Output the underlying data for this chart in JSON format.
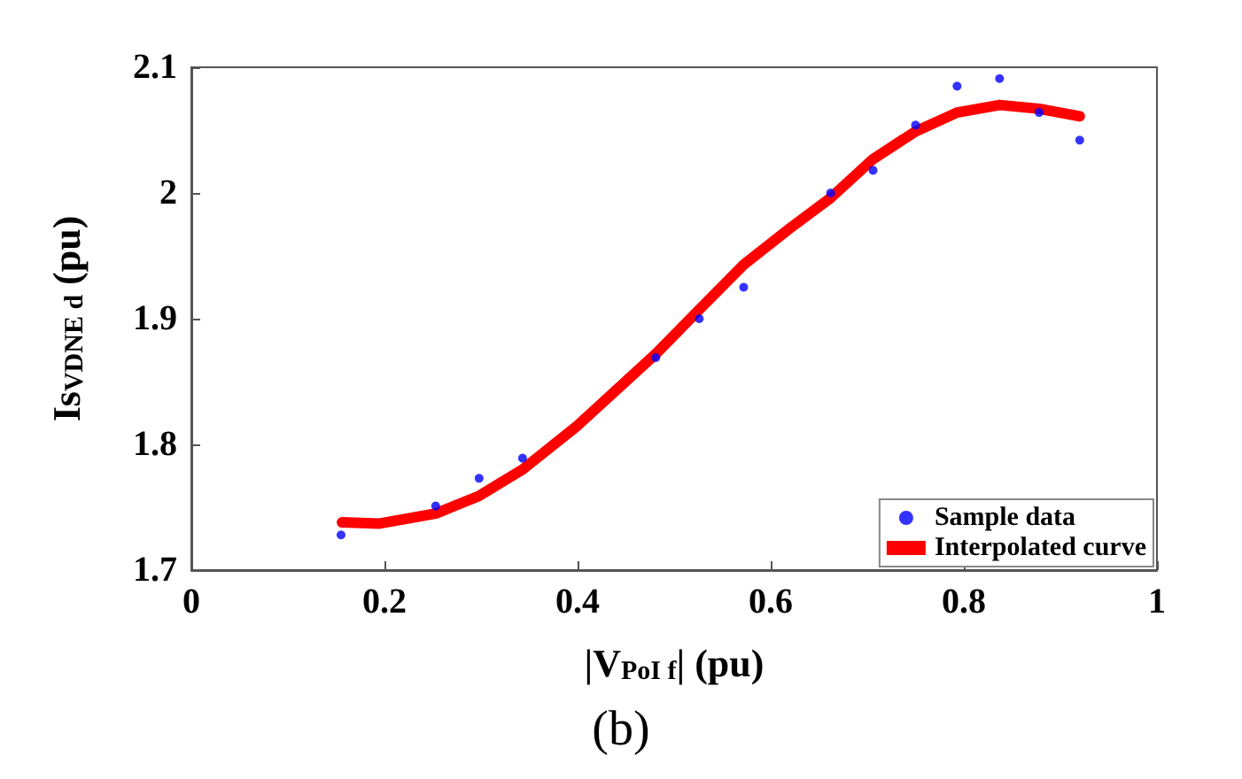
{
  "chart_data": {
    "type": "scatter",
    "xlabel": "|V$_{PoI f}$| (pu)",
    "ylabel": "Is$_{VDNE d}$ (pu)",
    "annotations": [
      "(b)"
    ],
    "xlim": [
      0,
      1
    ],
    "xticks": [
      0,
      0.2,
      0.4,
      0.6,
      0.8,
      1
    ],
    "ylim": [
      1.7,
      2.1
    ],
    "yticks": [
      1.7,
      1.8,
      1.9,
      2,
      2.1
    ],
    "grid": false,
    "legend": "bottom right",
    "series": [
      {
        "name": "Sample data",
        "marker": "circle",
        "color": "#0000ff",
        "x": [
          0.155,
          0.253,
          0.298,
          0.343,
          0.481,
          0.526,
          0.572,
          0.662,
          0.706,
          0.75,
          0.793,
          0.837,
          0.878,
          0.92
        ],
        "values": [
          1.728,
          1.751,
          1.773,
          1.789,
          1.869,
          1.9,
          1.925,
          2.0,
          2.018,
          2.054,
          2.085,
          2.091,
          2.064,
          2.042
        ]
      },
      {
        "name": "Interpolated curve",
        "type": "line",
        "marker": "none",
        "line_style": "solid",
        "color": "#ff0000",
        "x": [
          0.156,
          0.195,
          0.253,
          0.298,
          0.343,
          0.4,
          0.481,
          0.527,
          0.572,
          0.62,
          0.662,
          0.706,
          0.75,
          0.793,
          0.837,
          0.878,
          0.92
        ],
        "values": [
          1.738,
          1.737,
          1.745,
          1.759,
          1.78,
          1.815,
          1.872,
          1.908,
          1.943,
          1.972,
          1.996,
          2.027,
          2.049,
          2.064,
          2.07,
          2.067,
          2.061
        ]
      }
    ]
  }
}
